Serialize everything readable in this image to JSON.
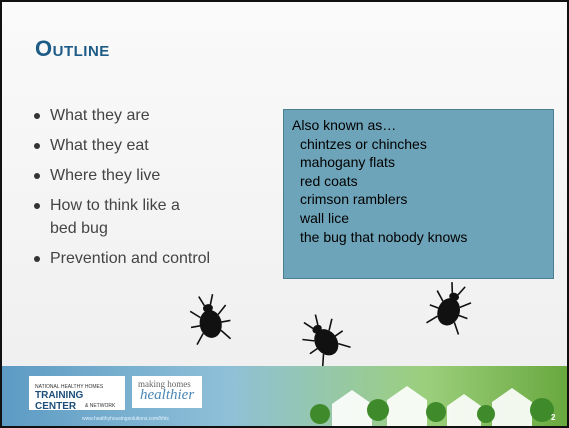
{
  "slide": {
    "title": "Outline",
    "bullets": [
      "What they are",
      "What they eat",
      "Where they live",
      "How to think like a bed bug",
      "Prevention and control"
    ],
    "box": {
      "heading": "Also known as…",
      "items": [
        "chintzes or chinches",
        "mahogany flats",
        "red coats",
        "crimson ramblers",
        "wall lice",
        "the bug that nobody knows"
      ]
    },
    "footer": {
      "logo_small": "NATIONAL HEALTHY HOMES",
      "logo_main": "TRAINING CENTER",
      "logo_sub": "& NETWORK",
      "tag_top": "making homes",
      "tag_main": "healthier",
      "url": "www.healthyhousingsolutions.com/hhtc",
      "page": "2"
    }
  }
}
